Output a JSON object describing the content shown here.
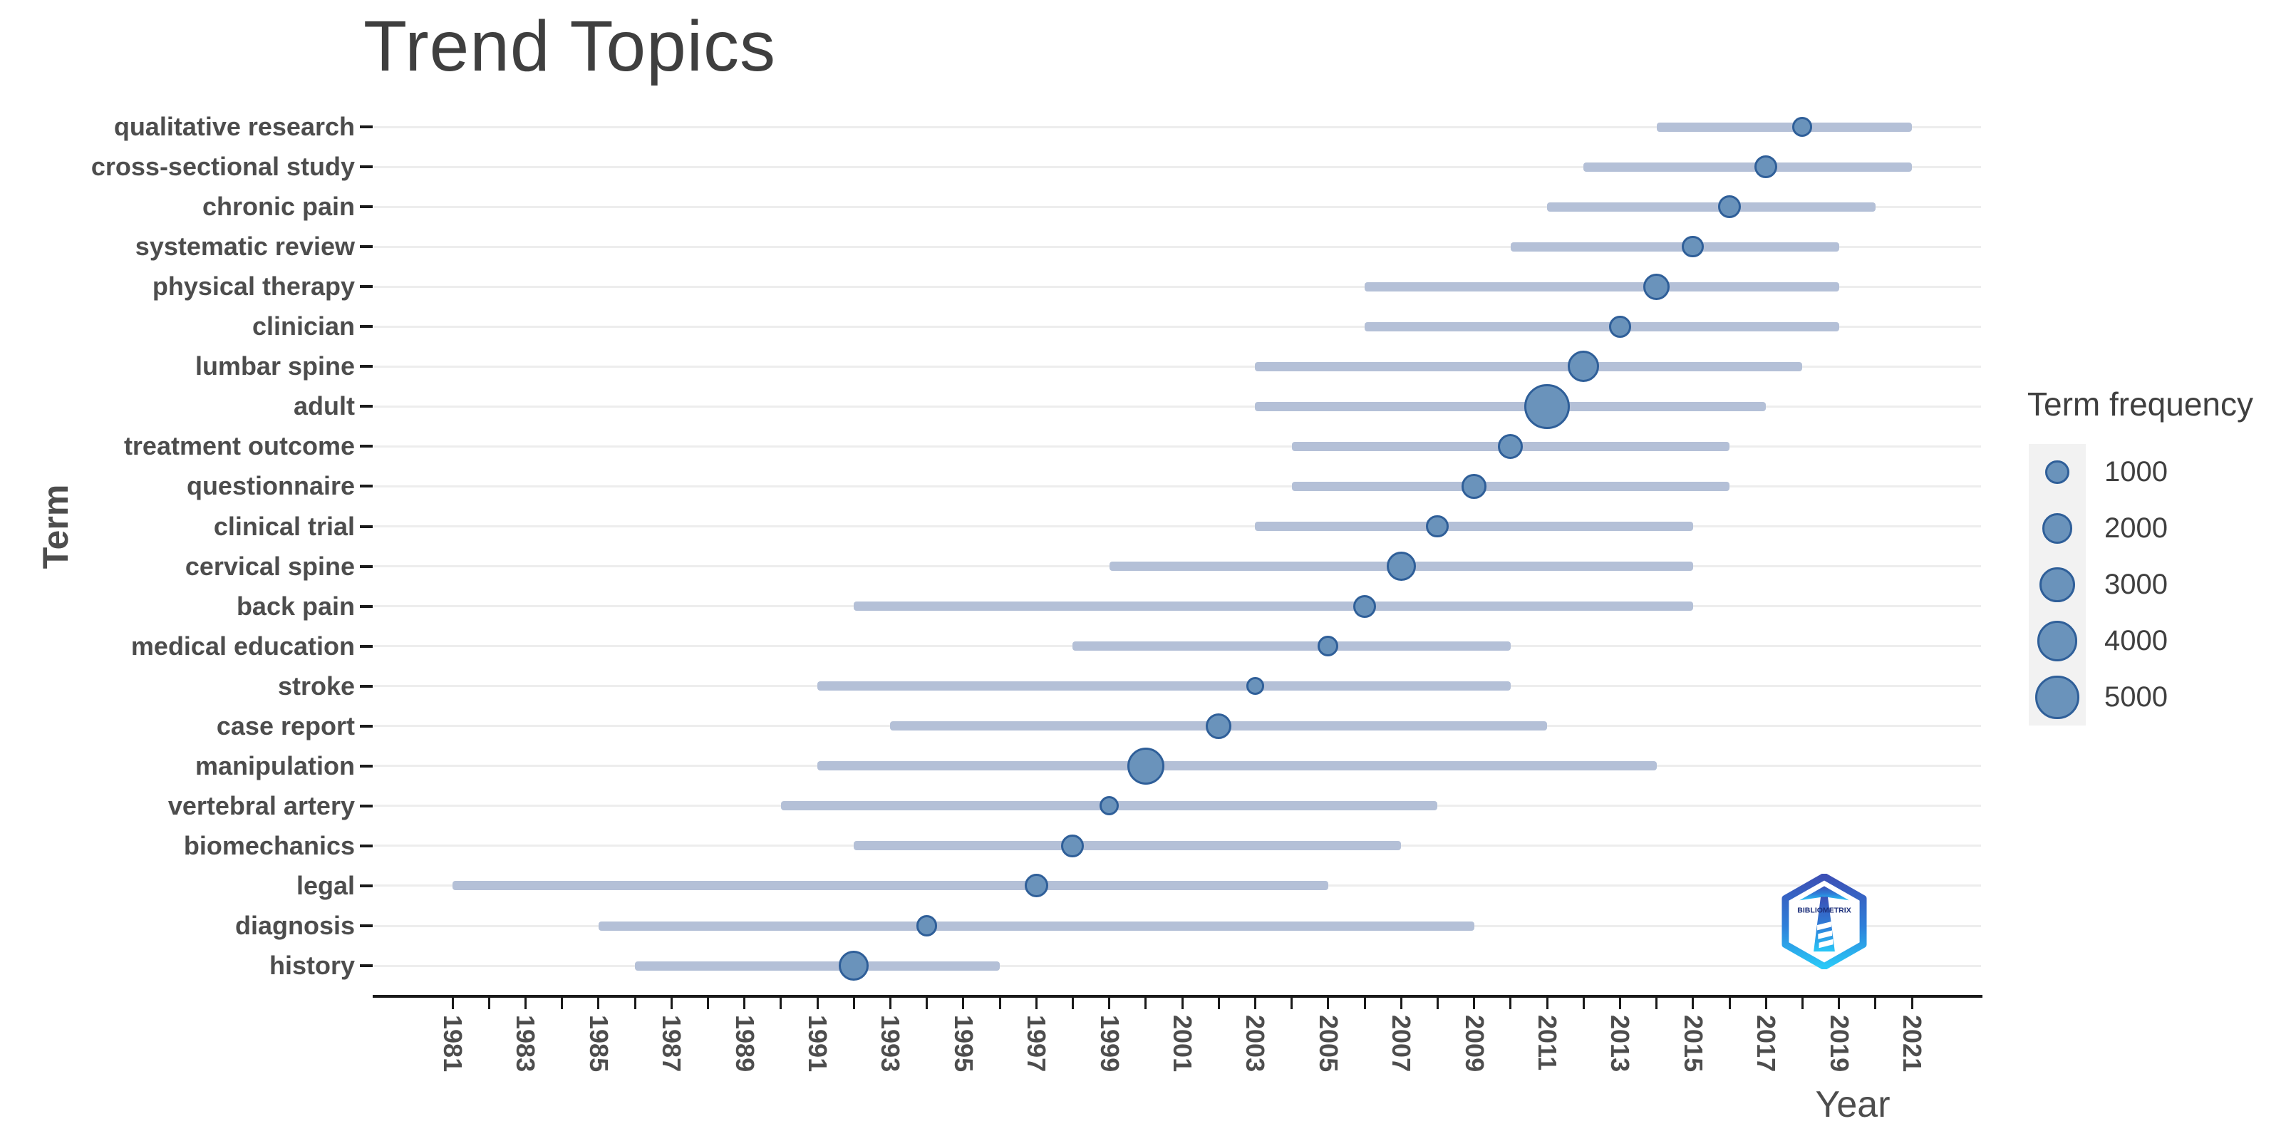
{
  "title": "Trend Topics",
  "xaxis": {
    "label": "Year",
    "min_year": 1981,
    "max_year": 2021,
    "tick_step": 1,
    "label_step": 2
  },
  "yaxis": {
    "label": "Term"
  },
  "legend": {
    "title": "Term frequency",
    "sizes": [
      1000,
      2000,
      3000,
      4000,
      5000
    ]
  },
  "logo": {
    "name": "bibliometrix-logo",
    "text": "BIBLIOMETRIX"
  },
  "colors": {
    "bubble_fill": "#6a93bb",
    "bubble_stroke": "#2f5f99",
    "line": "#b4c0d7",
    "gridline": "#ededed",
    "axis": "#1a1a1a",
    "text": "#4d4d4d",
    "title_text": "#3f3f3f",
    "legend_key_bg": "#f2f2f2"
  },
  "chart_data": {
    "type": "scatter",
    "subtype": "trend-topics-bubble-timeline",
    "title": "Trend Topics",
    "xlabel": "Year",
    "ylabel": "Term",
    "x_range": [
      1979,
      2023
    ],
    "x_tick_labels": [
      1981,
      1983,
      1985,
      1987,
      1989,
      1991,
      1993,
      1995,
      1997,
      1999,
      2001,
      2003,
      2005,
      2007,
      2009,
      2011,
      2013,
      2015,
      2017,
      2019,
      2021
    ],
    "grid": "horizontal-only",
    "legend_position": "right",
    "legend_title": "Term frequency",
    "legend_sizes": [
      1000,
      2000,
      3000,
      4000,
      5000
    ],
    "series_note": "each term has a line from year_q1 to year_q3 and a bubble at year_peak sized by term frequency (estimated)",
    "series": [
      {
        "term": "qualitative research",
        "year_q1": 2014,
        "year_peak": 2018,
        "year_q3": 2021,
        "freq": 600
      },
      {
        "term": "cross-sectional study",
        "year_q1": 2012,
        "year_peak": 2017,
        "year_q3": 2021,
        "freq": 900
      },
      {
        "term": "chronic pain",
        "year_q1": 2011,
        "year_peak": 2016,
        "year_q3": 2020,
        "freq": 900
      },
      {
        "term": "systematic review",
        "year_q1": 2010,
        "year_peak": 2015,
        "year_q3": 2019,
        "freq": 800
      },
      {
        "term": "physical therapy",
        "year_q1": 2006,
        "year_peak": 2014,
        "year_q3": 2019,
        "freq": 1400
      },
      {
        "term": "clinician",
        "year_q1": 2006,
        "year_peak": 2013,
        "year_q3": 2019,
        "freq": 800
      },
      {
        "term": "lumbar spine",
        "year_q1": 2003,
        "year_peak": 2012,
        "year_q3": 2018,
        "freq": 2200
      },
      {
        "term": "adult",
        "year_q1": 2003,
        "year_peak": 2011,
        "year_q3": 2017,
        "freq": 5300
      },
      {
        "term": "treatment outcome",
        "year_q1": 2004,
        "year_peak": 2010,
        "year_q3": 2016,
        "freq": 1200
      },
      {
        "term": "questionnaire",
        "year_q1": 2004,
        "year_peak": 2009,
        "year_q3": 2016,
        "freq": 1100
      },
      {
        "term": "clinical trial",
        "year_q1": 2003,
        "year_peak": 2008,
        "year_q3": 2015,
        "freq": 900
      },
      {
        "term": "cervical spine",
        "year_q1": 1999,
        "year_peak": 2007,
        "year_q3": 2015,
        "freq": 1800
      },
      {
        "term": "back pain",
        "year_q1": 1992,
        "year_peak": 2006,
        "year_q3": 2015,
        "freq": 900
      },
      {
        "term": "medical education",
        "year_q1": 1998,
        "year_peak": 2005,
        "year_q3": 2010,
        "freq": 700
      },
      {
        "term": "stroke",
        "year_q1": 1991,
        "year_peak": 2003,
        "year_q3": 2010,
        "freq": 400
      },
      {
        "term": "case report",
        "year_q1": 1993,
        "year_peak": 2002,
        "year_q3": 2011,
        "freq": 1300
      },
      {
        "term": "manipulation",
        "year_q1": 1991,
        "year_peak": 2000,
        "year_q3": 2014,
        "freq": 3300
      },
      {
        "term": "vertebral artery",
        "year_q1": 1990,
        "year_peak": 1999,
        "year_q3": 2008,
        "freq": 550
      },
      {
        "term": "biomechanics",
        "year_q1": 1992,
        "year_peak": 1998,
        "year_q3": 2007,
        "freq": 900
      },
      {
        "term": "legal",
        "year_q1": 1981,
        "year_peak": 1997,
        "year_q3": 2005,
        "freq": 1000
      },
      {
        "term": "diagnosis",
        "year_q1": 1985,
        "year_peak": 1994,
        "year_q3": 2009,
        "freq": 700
      },
      {
        "term": "history",
        "year_q1": 1986,
        "year_peak": 1992,
        "year_q3": 1996,
        "freq": 1900
      }
    ]
  }
}
